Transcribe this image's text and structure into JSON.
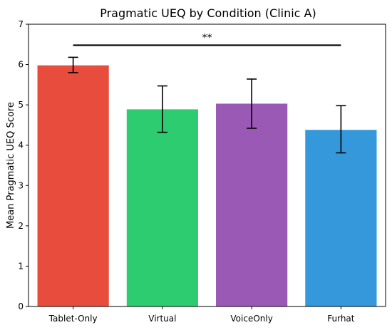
{
  "chart_data": {
    "type": "bar",
    "title": "Pragmatic UEQ by Condition (Clinic A)",
    "xlabel": "",
    "ylabel": "Mean Pragmatic UEQ Score",
    "ylim": [
      0,
      7
    ],
    "yticks": [
      0,
      1,
      2,
      3,
      4,
      5,
      6,
      7
    ],
    "categories": [
      "Tablet-Only",
      "Virtual",
      "VoiceOnly",
      "Furhat"
    ],
    "values": [
      5.98,
      4.89,
      5.03,
      4.38
    ],
    "error_low": [
      5.8,
      4.32,
      4.42,
      3.81
    ],
    "error_high": [
      6.18,
      5.47,
      5.64,
      4.98
    ],
    "colors": [
      "#e74c3c",
      "#2ecc71",
      "#9b59b6",
      "#3498db"
    ],
    "grid": false,
    "significance": {
      "label": "**",
      "from_category": "Tablet-Only",
      "to_category": "Furhat",
      "y": 6.48
    }
  }
}
